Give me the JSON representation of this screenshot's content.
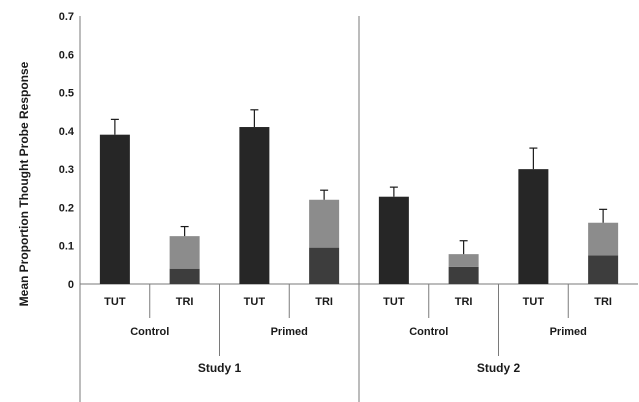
{
  "chart_data": {
    "type": "bar",
    "stacked": true,
    "ylabel": "Mean Proportion Thought Probe Response",
    "ylim": [
      0,
      0.7
    ],
    "yticks": [
      "0",
      "0.1",
      "0.2",
      "0.3",
      "0.4",
      "0.5",
      "0.6",
      "0.7"
    ],
    "grid": false,
    "categories": [
      "TUT",
      "TRI",
      "TUT",
      "TRI",
      "TUT",
      "TRI",
      "TUT",
      "TRI"
    ],
    "groups": [
      "Control",
      "Primed",
      "Control",
      "Primed"
    ],
    "studies": [
      "Study 1",
      "Study 2"
    ],
    "bars": [
      {
        "segments": [
          0.39
        ],
        "total": 0.39,
        "error": 0.04
      },
      {
        "segments": [
          0.04,
          0.085
        ],
        "total": 0.125,
        "error": 0.025
      },
      {
        "segments": [
          0.41
        ],
        "total": 0.41,
        "error": 0.045
      },
      {
        "segments": [
          0.095,
          0.125
        ],
        "total": 0.22,
        "error": 0.025
      },
      {
        "segments": [
          0.228
        ],
        "total": 0.228,
        "error": 0.025
      },
      {
        "segments": [
          0.045,
          0.033
        ],
        "total": 0.078,
        "error": 0.035
      },
      {
        "segments": [
          0.3
        ],
        "total": 0.3,
        "error": 0.055
      },
      {
        "segments": [
          0.075,
          0.085
        ],
        "total": 0.16,
        "error": 0.035
      }
    ],
    "colors": {
      "tut": "#262626",
      "tri_bottom": "#3d3d3d",
      "tri_top": "#8c8c8c",
      "axis": "#7a7a7a",
      "error": "#1a1a1a"
    }
  }
}
